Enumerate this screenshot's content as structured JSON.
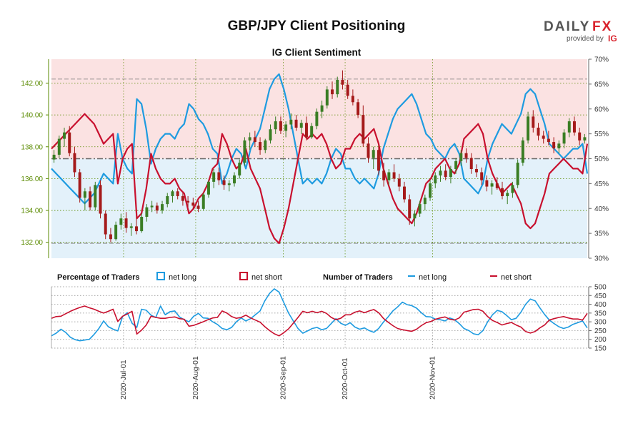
{
  "header": {
    "title": "GBP/JPY Client Positioning",
    "brand_left": "DAILY",
    "brand_right": "FX",
    "provided_by": "provided by",
    "ig": "IG"
  },
  "colors": {
    "price_axis": "#5a8a00",
    "net_long": "#1e9be0",
    "net_short": "#c8102e",
    "up_candle": "#3a7d24",
    "down_candle": "#a51a1a",
    "short_zone": "#fbe2e2",
    "long_zone": "#e3f1fa"
  },
  "chart_data": [
    {
      "type": "line",
      "title": "IG Client Sentiment",
      "left_axis": {
        "ylim": [
          131.0,
          143.5
        ],
        "ticks": [
          "132.00",
          "134.00",
          "136.00",
          "138.00",
          "140.00",
          "142.00"
        ],
        "values": [
          132,
          134,
          136,
          138,
          140,
          142
        ]
      },
      "right_axis": {
        "ylim": [
          30,
          70
        ],
        "ticks": [
          "30%",
          "35%",
          "40%",
          "45%",
          "50%",
          "55%",
          "60%",
          "65%",
          "70%"
        ],
        "values": [
          30,
          35,
          40,
          45,
          50,
          55,
          60,
          65,
          70
        ]
      },
      "reference_lines": [
        50
      ],
      "price_ohlc": [
        [
          137.2,
          137.8,
          137.0,
          137.5
        ],
        [
          137.5,
          138.7,
          137.3,
          138.5
        ],
        [
          138.5,
          139.2,
          138.0,
          138.9
        ],
        [
          138.9,
          139.3,
          137.4,
          137.6
        ],
        [
          137.6,
          138.0,
          136.1,
          136.4
        ],
        [
          136.4,
          136.6,
          134.5,
          134.8
        ],
        [
          134.8,
          135.4,
          134.0,
          135.2
        ],
        [
          135.2,
          135.5,
          134.0,
          134.2
        ],
        [
          134.2,
          135.8,
          134.0,
          135.6
        ],
        [
          135.6,
          135.9,
          133.5,
          133.8
        ],
        [
          133.8,
          134.0,
          132.2,
          132.5
        ],
        [
          132.5,
          132.9,
          132.0,
          132.2
        ],
        [
          132.2,
          133.3,
          132.1,
          133.1
        ],
        [
          133.1,
          133.8,
          132.8,
          133.5
        ],
        [
          133.5,
          133.9,
          132.6,
          132.9
        ],
        [
          132.9,
          133.2,
          132.4,
          133.0
        ],
        [
          133.0,
          133.6,
          132.5,
          132.7
        ],
        [
          132.7,
          133.8,
          132.6,
          133.6
        ],
        [
          133.6,
          134.4,
          133.3,
          134.2
        ],
        [
          134.2,
          134.6,
          133.9,
          134.3
        ],
        [
          134.3,
          134.5,
          133.8,
          134.0
        ],
        [
          134.0,
          134.6,
          133.8,
          134.4
        ],
        [
          134.4,
          135.1,
          134.2,
          134.9
        ],
        [
          134.9,
          135.3,
          134.5,
          135.2
        ],
        [
          135.2,
          135.4,
          134.7,
          134.9
        ],
        [
          134.9,
          135.1,
          134.3,
          134.6
        ],
        [
          134.6,
          134.9,
          134.2,
          134.5
        ],
        [
          134.5,
          134.8,
          134.1,
          134.3
        ],
        [
          134.3,
          134.6,
          133.9,
          134.1
        ],
        [
          134.1,
          135.1,
          134.0,
          135.0
        ],
        [
          135.0,
          135.9,
          134.8,
          135.8
        ],
        [
          135.8,
          136.6,
          135.4,
          136.4
        ],
        [
          136.4,
          136.7,
          135.6,
          135.9
        ],
        [
          135.9,
          136.2,
          135.3,
          135.6
        ],
        [
          135.6,
          135.9,
          135.2,
          135.7
        ],
        [
          135.7,
          136.4,
          135.5,
          136.2
        ],
        [
          136.2,
          137.2,
          136.0,
          137.0
        ],
        [
          137.0,
          138.6,
          136.8,
          138.4
        ],
        [
          138.4,
          138.9,
          137.8,
          138.6
        ],
        [
          138.6,
          139.0,
          138.0,
          138.3
        ],
        [
          138.3,
          138.6,
          137.5,
          137.8
        ],
        [
          137.8,
          138.5,
          137.6,
          138.4
        ],
        [
          138.4,
          139.4,
          138.2,
          139.1
        ],
        [
          139.1,
          139.9,
          138.8,
          139.6
        ],
        [
          139.6,
          139.9,
          138.8,
          139.0
        ],
        [
          139.0,
          139.6,
          138.6,
          139.4
        ],
        [
          139.4,
          140.1,
          139.1,
          139.7
        ],
        [
          139.7,
          140.0,
          139.0,
          139.2
        ],
        [
          139.2,
          139.7,
          138.8,
          139.5
        ],
        [
          139.5,
          139.9,
          138.4,
          138.6
        ],
        [
          138.6,
          139.5,
          138.5,
          139.3
        ],
        [
          139.3,
          140.4,
          139.1,
          140.2
        ],
        [
          140.2,
          140.9,
          139.8,
          140.6
        ],
        [
          140.6,
          141.8,
          140.4,
          141.6
        ],
        [
          141.6,
          142.1,
          141.0,
          141.3
        ],
        [
          141.3,
          142.4,
          141.1,
          142.2
        ],
        [
          142.2,
          142.8,
          141.6,
          141.9
        ],
        [
          141.9,
          142.2,
          141.0,
          141.2
        ],
        [
          141.2,
          141.6,
          140.6,
          140.8
        ],
        [
          140.8,
          141.0,
          139.8,
          140.0
        ],
        [
          140.0,
          140.6,
          138.0,
          138.2
        ],
        [
          138.2,
          138.6,
          137.0,
          137.3
        ],
        [
          137.3,
          138.0,
          136.6,
          137.8
        ],
        [
          137.8,
          138.1,
          136.2,
          136.5
        ],
        [
          136.5,
          137.0,
          135.5,
          135.9
        ],
        [
          135.9,
          136.6,
          135.6,
          136.4
        ],
        [
          136.4,
          136.9,
          135.8,
          136.0
        ],
        [
          136.0,
          136.3,
          135.2,
          135.5
        ],
        [
          135.5,
          135.8,
          134.5,
          134.7
        ],
        [
          134.7,
          135.0,
          133.1,
          133.5
        ],
        [
          133.5,
          134.0,
          133.0,
          133.8
        ],
        [
          133.8,
          134.6,
          133.6,
          134.4
        ],
        [
          134.4,
          135.0,
          134.0,
          134.8
        ],
        [
          134.8,
          135.9,
          134.6,
          135.7
        ],
        [
          135.7,
          136.4,
          135.4,
          136.2
        ],
        [
          136.2,
          136.8,
          135.8,
          136.5
        ],
        [
          136.5,
          136.9,
          135.9,
          136.1
        ],
        [
          136.1,
          136.8,
          135.7,
          136.6
        ],
        [
          136.6,
          137.3,
          136.3,
          137.1
        ],
        [
          137.1,
          137.8,
          136.8,
          137.6
        ],
        [
          137.6,
          137.9,
          137.0,
          137.3
        ],
        [
          137.3,
          137.6,
          136.3,
          136.6
        ],
        [
          136.6,
          136.9,
          136.1,
          136.4
        ],
        [
          136.4,
          136.7,
          135.6,
          135.9
        ],
        [
          135.9,
          136.2,
          135.2,
          135.5
        ],
        [
          135.5,
          135.9,
          135.0,
          135.7
        ],
        [
          135.7,
          136.1,
          135.3,
          135.4
        ],
        [
          135.4,
          135.8,
          134.7,
          134.9
        ],
        [
          134.9,
          135.3,
          134.4,
          135.1
        ],
        [
          135.1,
          135.8,
          134.8,
          135.6
        ],
        [
          135.6,
          137.2,
          135.4,
          137.0
        ],
        [
          137.0,
          138.6,
          136.8,
          138.4
        ],
        [
          138.4,
          140.2,
          138.2,
          139.9
        ],
        [
          139.9,
          140.3,
          138.9,
          139.2
        ],
        [
          139.2,
          139.5,
          138.4,
          138.7
        ],
        [
          138.7,
          139.0,
          138.2,
          138.5
        ],
        [
          138.5,
          139.0,
          138.1,
          138.3
        ],
        [
          138.3,
          138.6,
          137.6,
          137.9
        ],
        [
          137.9,
          138.4,
          137.6,
          138.2
        ],
        [
          138.2,
          139.1,
          137.9,
          138.9
        ],
        [
          138.9,
          139.8,
          138.6,
          139.6
        ],
        [
          139.6,
          139.9,
          138.7,
          138.9
        ],
        [
          138.9,
          139.2,
          138.1,
          138.4
        ],
        [
          138.4,
          138.8,
          138.2,
          138.6
        ]
      ],
      "series": [
        {
          "name": "net long",
          "values": [
            48,
            47,
            46,
            45,
            44,
            43,
            42,
            41,
            42,
            43,
            45,
            47,
            46,
            45,
            55,
            50,
            48,
            47,
            62,
            61,
            56,
            49,
            52,
            54,
            55,
            55,
            54,
            56,
            57,
            61,
            60,
            58,
            57,
            55,
            52,
            51,
            45,
            47,
            50,
            52,
            51,
            48,
            52,
            54,
            56,
            60,
            64,
            66,
            67,
            64,
            60,
            55,
            50,
            45,
            46,
            45,
            46,
            45,
            47,
            50,
            52,
            51,
            48,
            48,
            46,
            45,
            46,
            45,
            44,
            47,
            52,
            55,
            58,
            60,
            61,
            62,
            63,
            61,
            58,
            55,
            54,
            52,
            51,
            50,
            52,
            53,
            51,
            46,
            45,
            44,
            43,
            45,
            50,
            53,
            55,
            57,
            56,
            55,
            57,
            59,
            63,
            64,
            63,
            60,
            57,
            53,
            52,
            51,
            50,
            51,
            52,
            52,
            53,
            47
          ]
        },
        {
          "name": "net short",
          "values": [
            52,
            53,
            54,
            55,
            56,
            57,
            58,
            59,
            58,
            57,
            55,
            53,
            54,
            55,
            45,
            50,
            52,
            53,
            38,
            39,
            44,
            51,
            48,
            46,
            45,
            45,
            46,
            44,
            43,
            39,
            40,
            42,
            43,
            45,
            48,
            49,
            55,
            53,
            50,
            48,
            49,
            52,
            48,
            46,
            44,
            40,
            36,
            34,
            33,
            36,
            40,
            45,
            50,
            55,
            54,
            55,
            54,
            55,
            53,
            50,
            48,
            49,
            52,
            52,
            54,
            55,
            54,
            55,
            56,
            53,
            48,
            45,
            42,
            40,
            39,
            38,
            37,
            39,
            42,
            45,
            46,
            48,
            49,
            50,
            48,
            47,
            49,
            54,
            55,
            56,
            57,
            55,
            50,
            47,
            45,
            43,
            44,
            45,
            43,
            41,
            37,
            36,
            37,
            40,
            43,
            47,
            48,
            49,
            50,
            49,
            48,
            48,
            47,
            53
          ]
        }
      ]
    },
    {
      "type": "line",
      "title": "Number of Traders",
      "ylim": [
        150,
        500
      ],
      "ticks": [
        "150",
        "200",
        "250",
        "300",
        "350",
        "400",
        "450",
        "500"
      ],
      "tick_values": [
        150,
        200,
        250,
        300,
        350,
        400,
        450,
        500
      ],
      "x_ticks": [
        "2020-Jul-01",
        "2020-Aug-01",
        "2020-Sep-01",
        "2020-Oct-01",
        "2020-Nov-01"
      ],
      "series": [
        {
          "name": "net long",
          "values": [
            220,
            235,
            258,
            240,
            212,
            198,
            192,
            196,
            200,
            228,
            262,
            305,
            272,
            258,
            248,
            330,
            352,
            292,
            268,
            372,
            366,
            338,
            325,
            390,
            340,
            358,
            362,
            328,
            312,
            300,
            332,
            348,
            322,
            320,
            300,
            285,
            262,
            255,
            268,
            300,
            322,
            305,
            318,
            340,
            362,
            420,
            462,
            488,
            470,
            410,
            350,
            305,
            262,
            235,
            248,
            262,
            268,
            255,
            262,
            290,
            318,
            292,
            280,
            295,
            270,
            258,
            265,
            250,
            240,
            262,
            298,
            328,
            362,
            385,
            412,
            398,
            392,
            378,
            352,
            330,
            328,
            315,
            312,
            305,
            322,
            312,
            290,
            262,
            250,
            232,
            226,
            250,
            300,
            340,
            365,
            358,
            336,
            312,
            320,
            355,
            400,
            430,
            420,
            380,
            342,
            310,
            290,
            272,
            262,
            270,
            286,
            295,
            305,
            265
          ]
        },
        {
          "name": "net short",
          "values": [
            320,
            330,
            332,
            346,
            360,
            372,
            382,
            390,
            380,
            372,
            360,
            350,
            360,
            372,
            302,
            332,
            345,
            360,
            230,
            252,
            282,
            332,
            325,
            320,
            320,
            325,
            328,
            318,
            315,
            275,
            280,
            290,
            300,
            312,
            322,
            325,
            362,
            350,
            330,
            320,
            325,
            338,
            322,
            310,
            298,
            272,
            250,
            232,
            220,
            238,
            260,
            292,
            325,
            360,
            352,
            360,
            352,
            360,
            348,
            325,
            312,
            320,
            340,
            340,
            355,
            362,
            352,
            362,
            370,
            352,
            320,
            298,
            278,
            262,
            255,
            250,
            246,
            258,
            278,
            295,
            302,
            315,
            322,
            328,
            315,
            310,
            322,
            355,
            362,
            370,
            372,
            360,
            330,
            308,
            296,
            282,
            290,
            296,
            282,
            270,
            245,
            236,
            245,
            265,
            282,
            310,
            318,
            325,
            330,
            322,
            316,
            316,
            310,
            348
          ]
        }
      ]
    }
  ],
  "legend": {
    "pct_label": "Percentage of Traders",
    "num_label": "Number of Traders",
    "pct_long": "net long",
    "pct_short": "net short",
    "num_long": "net long",
    "num_short": "net short"
  }
}
